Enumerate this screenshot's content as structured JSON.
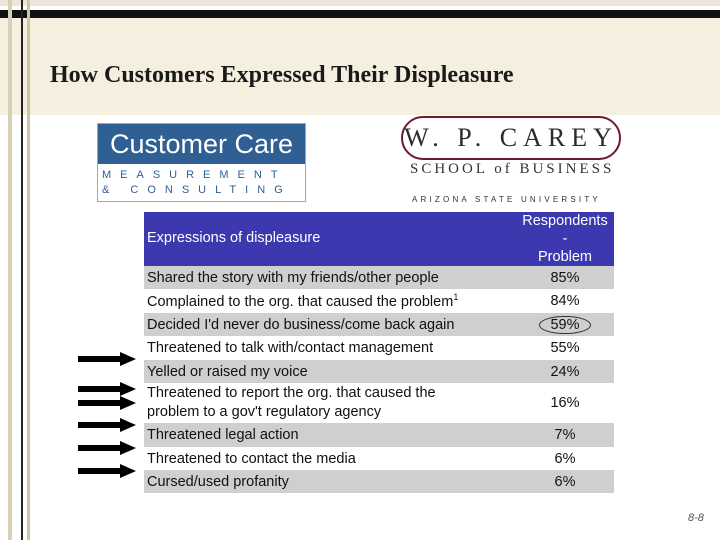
{
  "title": "How Customers Expressed Their Displeasure",
  "logos": {
    "customer_care": {
      "line1": "Customer Care",
      "line2": "MEASUREMENT",
      "line3": "& CONSULTING"
    },
    "wp_carey": {
      "name": "W. P. CAREY",
      "school": "SCHOOL of BUSINESS",
      "university": "ARIZONA STATE UNIVERSITY"
    }
  },
  "table": {
    "header": {
      "col1": "Expressions of displeasure",
      "col2_line1": "Respondents -",
      "col2_line2": "Problem"
    },
    "rows": [
      {
        "label": "Shared the story with my friends/other people",
        "value": "85%"
      },
      {
        "label": "Complained to the org. that caused the problem",
        "footnote": "1",
        "value": "84%"
      },
      {
        "label": "Decided I'd never do business/come back again",
        "value": "59%"
      },
      {
        "label": "Threatened to talk with/contact management",
        "value": "55%"
      },
      {
        "label": "Yelled or raised my voice",
        "value": "24%"
      },
      {
        "label_line1": "Threatened to report the org. that caused the",
        "label_line2": "problem to a gov't regulatory agency",
        "value": "16%"
      },
      {
        "label": "Threatened legal action",
        "value": "7%"
      },
      {
        "label": "Threatened to contact the media",
        "value": "6%"
      },
      {
        "label": "Cursed/used profanity",
        "value": "6%"
      }
    ]
  },
  "slide_number": "8-8",
  "colors": {
    "header_bg": "#3b38b0",
    "stripe": "#cfcfcf",
    "cc_blue": "#2f5f93",
    "wp_maroon": "#6d1a2a"
  }
}
